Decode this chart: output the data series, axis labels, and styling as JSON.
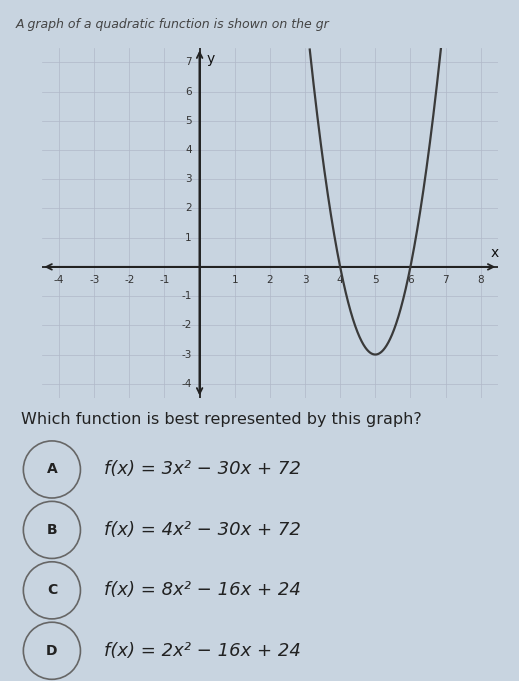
{
  "title": "Which function is best represented by this graph?",
  "header": "A graph of a quadratic function is shown on the gr",
  "curve_color": "#3a3a3a",
  "curve_linewidth": 1.6,
  "grid_color": "#b0b8c8",
  "grid_linewidth": 0.5,
  "axis_color": "#222222",
  "page_bg": "#c8d4e0",
  "graph_bg": "#dce8f4",
  "header_bg": "#b8c8d8",
  "xlim": [
    -4.5,
    8.5
  ],
  "ylim": [
    -4.5,
    7.5
  ],
  "xticks": [
    -4,
    -3,
    -2,
    -1,
    1,
    2,
    3,
    4,
    5,
    6,
    7,
    8
  ],
  "yticks": [
    -4,
    -3,
    -2,
    -1,
    1,
    2,
    3,
    4,
    5,
    6,
    7
  ],
  "func_a": [
    3,
    -30,
    72
  ],
  "option_labels": [
    "A",
    "B",
    "C",
    "D"
  ],
  "option_texts": [
    "f(x) = 3x² − 30x + 72",
    "f(x) = 4x² − 30x + 72",
    "f(x) = 8x² − 16x + 24",
    "f(x) = 2x² − 16x + 24"
  ],
  "text_color": "#222222",
  "tick_fontsize": 7.5,
  "axis_label_fontsize": 10,
  "question_fontsize": 11.5,
  "option_fontsize": 13
}
